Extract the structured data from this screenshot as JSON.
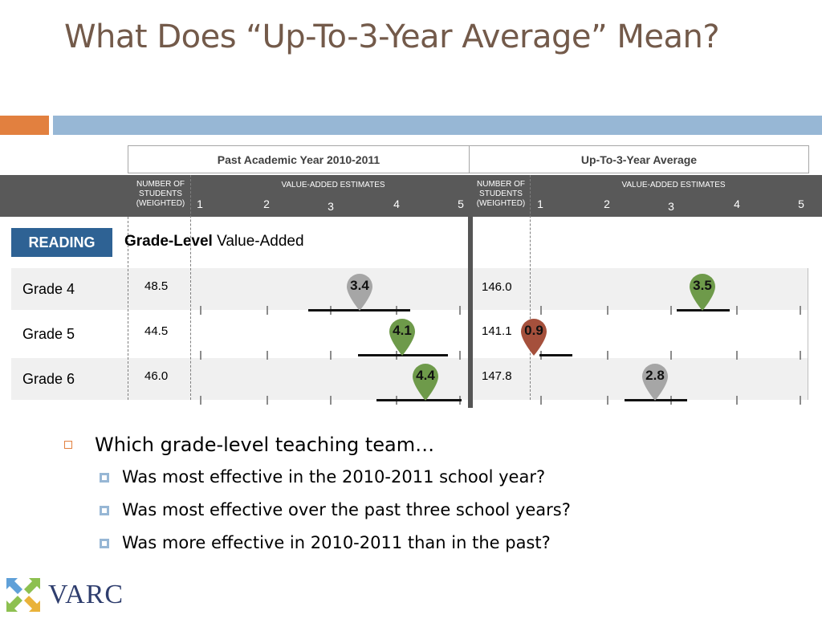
{
  "title": "What Does “Up-To-3-Year Average” Mean?",
  "table": {
    "header_left": "Past Academic Year 2010-2011",
    "header_right": "Up-To-3-Year Average",
    "students_label": "NUMBER OF STUDENTS (WEIGHTED)",
    "estimates_label": "VALUE-ADDED ESTIMATES",
    "scale": [
      "1",
      "2",
      "3",
      "4",
      "5"
    ],
    "subject_badge": "READING",
    "section_heading_bold": "Grade-Level",
    "section_heading_rest": " Value-Added",
    "rows": [
      {
        "grade": "Grade 4",
        "students_past": "48.5",
        "estimate_past": "3.4",
        "students_avg": "146.0",
        "estimate_avg": "3.5"
      },
      {
        "grade": "Grade 5",
        "students_past": "44.5",
        "estimate_past": "4.1",
        "students_avg": "141.1",
        "estimate_avg": "0.9"
      },
      {
        "grade": "Grade 6",
        "students_past": "46.0",
        "estimate_past": "4.4",
        "students_avg": "147.8",
        "estimate_avg": "2.8"
      }
    ]
  },
  "marker_colors": {
    "gray": "#a6a6a6",
    "green": "#6e9a4a",
    "red": "#a5503c"
  },
  "bullets": {
    "main": "Which grade-level teaching team…",
    "sub": [
      "Was most effective in the 2010-2011 school year?",
      "Was most effective over the past three school years?",
      "Was more effective in 2010-2011 than in the past?"
    ]
  },
  "logo": {
    "text": "VARC"
  }
}
